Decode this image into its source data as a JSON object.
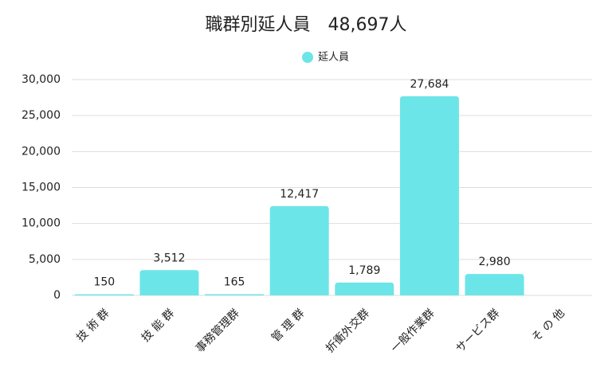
{
  "chart_data": {
    "type": "bar",
    "title": "職群別延人員　48,697人",
    "categories": [
      "技 術 群",
      "技 能 群",
      "事務管理群",
      "管 理 群",
      "折衝外交群",
      "一般作業群",
      "サービス群",
      "そ の 他"
    ],
    "series": [
      {
        "name": "延人員",
        "color": "#6ce5e8",
        "values": [
          150,
          3512,
          165,
          12417,
          1789,
          27684,
          2980,
          0
        ],
        "value_labels": [
          "150",
          "3,512",
          "165",
          "12,417",
          "1,789",
          "27,684",
          "2,980",
          null
        ]
      }
    ],
    "ylim": [
      0,
      30000
    ],
    "yticks": [
      0,
      {
        "value": 5000,
        "label": "5,000"
      },
      {
        "value": 10000,
        "label": "10,000"
      },
      {
        "value": 15000,
        "label": "15,000"
      },
      {
        "value": 20000,
        "label": "20,000"
      },
      {
        "value": 25000,
        "label": "25,000"
      },
      {
        "value": 30000,
        "label": "30,000"
      }
    ],
    "grid": true
  }
}
